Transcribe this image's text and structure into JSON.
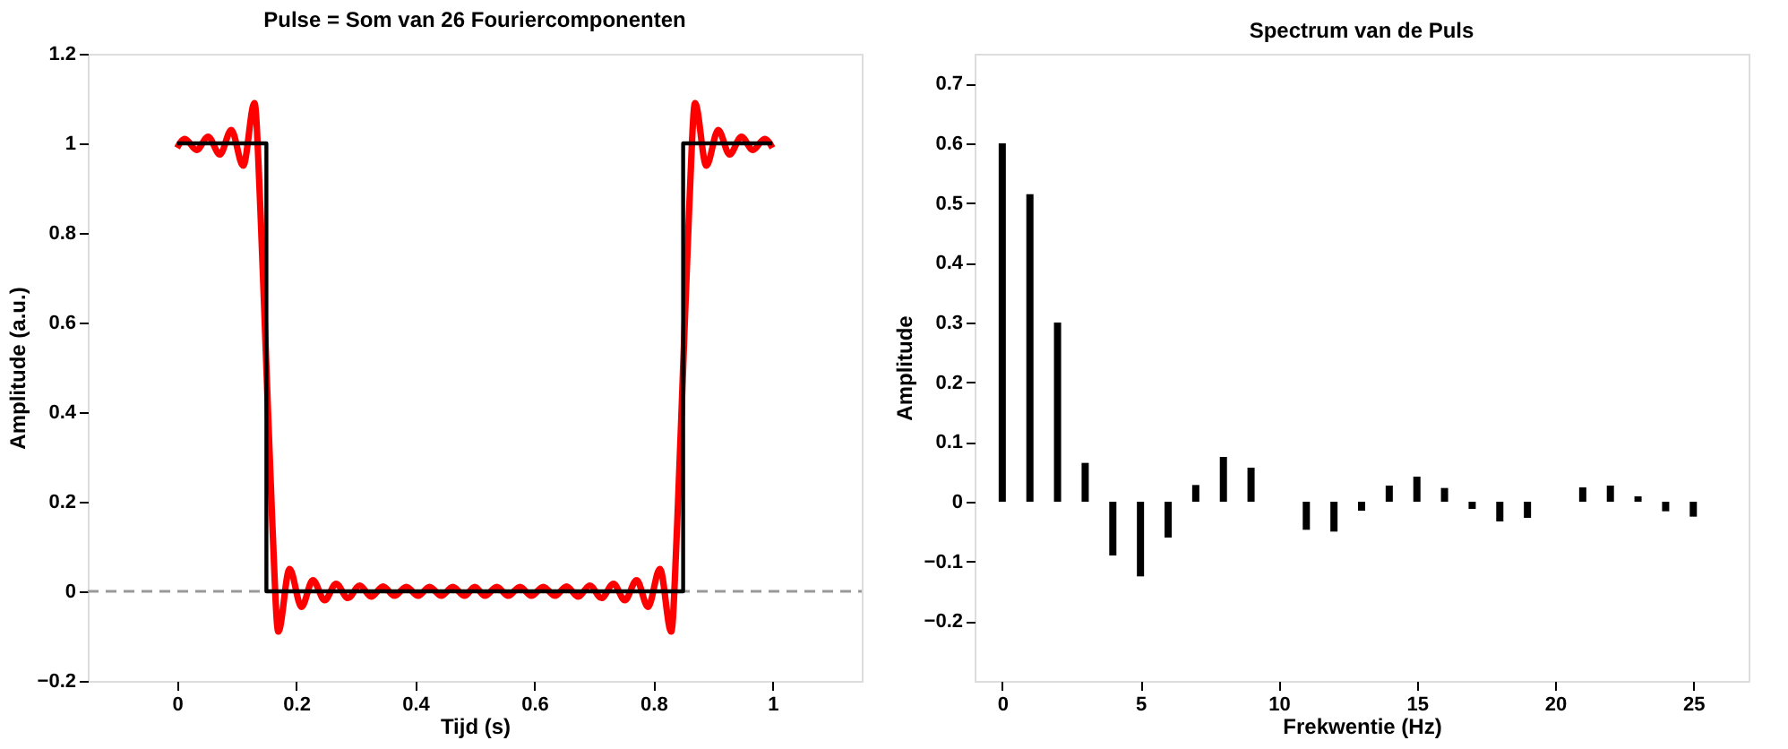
{
  "chart_data": [
    {
      "type": "line",
      "title": "Pulse = Som van 26 Fouriercomponenten",
      "xlabel": "Tijd (s)",
      "ylabel": "Amplitude (a.u.)",
      "xlim": [
        -0.15,
        1.15
      ],
      "ylim": [
        -0.2,
        1.2
      ],
      "xticks": [
        0,
        0.2,
        0.4,
        0.6,
        0.8,
        1
      ],
      "yticks": [
        -0.2,
        0,
        0.2,
        0.4,
        0.6,
        0.8,
        1,
        1.2
      ],
      "series": [
        {
          "color": "#ff0000",
          "x": [
            0,
            0.013,
            0.033,
            0.052,
            0.072,
            0.091,
            0.111,
            0.13,
            0.14,
            0.15,
            0.16,
            0.17,
            0.189,
            0.209,
            0.228,
            0.248,
            0.267,
            0.287,
            0.307,
            0.326,
            0.346,
            0.365,
            0.385,
            0.405,
            0.424,
            0.444,
            0.463,
            0.483,
            0.5,
            0.517,
            0.537,
            0.556,
            0.576,
            0.595,
            0.615,
            0.635,
            0.654,
            0.674,
            0.693,
            0.713,
            0.733,
            0.752,
            0.772,
            0.791,
            0.811,
            0.83,
            0.84,
            0.85,
            0.86,
            0.87,
            0.889,
            0.909,
            0.928,
            0.948,
            0.967,
            0.987,
            1
          ],
          "values": [
            0.99,
            1.01,
            0.985,
            1.015,
            0.975,
            1.03,
            0.95,
            1.09,
            0.85,
            0.5,
            0.15,
            -0.09,
            0.05,
            -0.035,
            0.025,
            -0.02,
            0.017,
            -0.015,
            0.013,
            -0.012,
            0.011,
            -0.01,
            0.01,
            -0.01,
            0.01,
            -0.01,
            0.01,
            -0.01,
            0.01,
            -0.01,
            0.01,
            -0.01,
            0.01,
            -0.01,
            0.01,
            -0.01,
            0.011,
            -0.012,
            0.013,
            -0.015,
            0.017,
            -0.02,
            0.025,
            -0.035,
            0.05,
            -0.09,
            0.15,
            0.5,
            0.85,
            1.09,
            0.95,
            1.03,
            0.975,
            1.015,
            0.985,
            1.01,
            0.99
          ]
        },
        {
          "color": "#000000",
          "x": [
            0,
            0.15,
            0.15,
            0.85,
            0.85,
            1
          ],
          "values": [
            1,
            1,
            0,
            0,
            1,
            1
          ]
        }
      ],
      "ref_lines": [
        {
          "axis": "y",
          "value": 0,
          "color": "#999999",
          "line_style": "dashed"
        }
      ]
    },
    {
      "type": "bar",
      "title": "Spectrum van de Puls",
      "xlabel": "Frekwentie (Hz)",
      "ylabel": "Amplitude",
      "xlim": [
        -1,
        27
      ],
      "ylim": [
        -0.3,
        0.75
      ],
      "xticks": [
        0,
        5,
        10,
        15,
        20,
        25
      ],
      "yticks": [
        -0.2,
        -0.1,
        0,
        0.1,
        0.2,
        0.3,
        0.4,
        0.5,
        0.6,
        0.7
      ],
      "color": "#000000",
      "x": [
        0,
        1,
        2,
        3,
        4,
        5,
        6,
        7,
        8,
        9,
        11,
        12,
        13,
        14,
        15,
        16,
        17,
        18,
        19,
        21,
        22,
        23,
        24,
        25
      ],
      "values": [
        0.6,
        0.515,
        0.3,
        0.065,
        -0.09,
        -0.125,
        -0.06,
        0.028,
        0.075,
        0.057,
        -0.047,
        -0.05,
        -0.015,
        0.027,
        0.042,
        0.023,
        -0.012,
        -0.033,
        -0.027,
        0.024,
        0.027,
        0.009,
        -0.016,
        -0.025
      ]
    }
  ]
}
